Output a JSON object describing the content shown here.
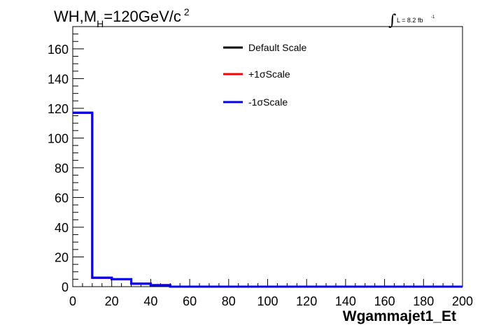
{
  "chart_data": {
    "type": "line",
    "title": {
      "prefix": "WH,M",
      "subscript": "H",
      "suffix": "=120GeV/c",
      "superscript": "2"
    },
    "lumi": {
      "symbol": "∫",
      "text": "L = 8.2 fb",
      "exponent": "-1"
    },
    "xlabel": "Wgammajet1_Et",
    "ylabel": "",
    "xlim": [
      0,
      200
    ],
    "ylim": [
      0,
      175
    ],
    "x_ticks": [
      0,
      20,
      40,
      60,
      80,
      100,
      120,
      140,
      160,
      180,
      200
    ],
    "y_ticks": [
      0,
      20,
      40,
      60,
      80,
      100,
      120,
      140,
      160
    ],
    "bin_edges": [
      0,
      10,
      20,
      30,
      40,
      50,
      60,
      70,
      80,
      90,
      100,
      110,
      120,
      130,
      140,
      150,
      160,
      170,
      180,
      190,
      200
    ],
    "series": [
      {
        "name": "Default Scale",
        "color": "#000000",
        "values": [
          117,
          6,
          5,
          2,
          1,
          0,
          0,
          0,
          0,
          0,
          0,
          0,
          0,
          0,
          0,
          0,
          0,
          0,
          0,
          0
        ]
      },
      {
        "name": "+1σScale",
        "color": "#ff0000",
        "values": [
          117,
          6,
          5,
          2,
          1,
          0,
          0,
          0,
          0,
          0,
          0,
          0,
          0,
          0,
          0,
          0,
          0,
          0,
          0,
          0
        ]
      },
      {
        "name": "-1σScale",
        "color": "#0000ee",
        "values": [
          117,
          6,
          5,
          2,
          1,
          0,
          0,
          0,
          0,
          0,
          0,
          0,
          0,
          0,
          0,
          0,
          0,
          0,
          0,
          0
        ]
      }
    ],
    "legend_position": "top-center",
    "grid": false
  }
}
